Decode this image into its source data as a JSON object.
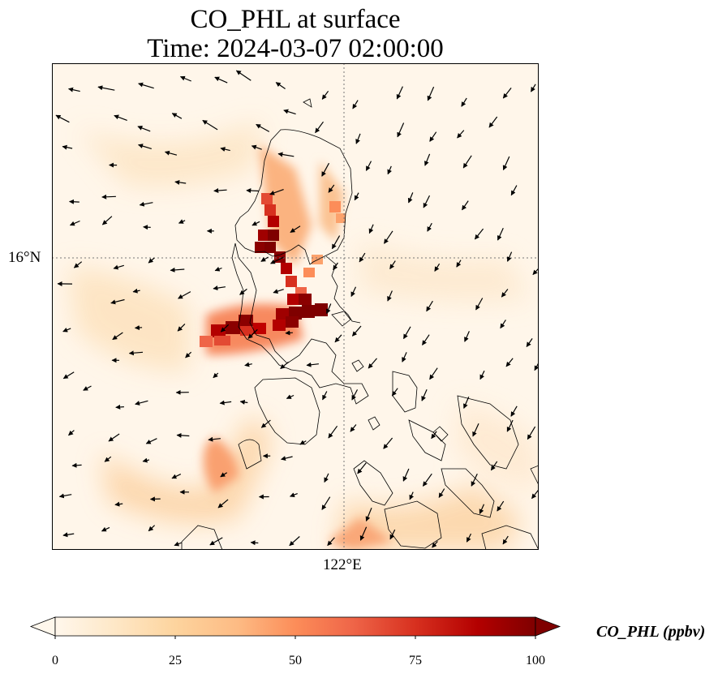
{
  "title_line1": "CO_PHL at surface",
  "title_line2": "Time: 2024-03-07 02:00:00",
  "map": {
    "lat_tick": "16°N",
    "lon_tick": "122°E",
    "gridline_style": "dotted",
    "features": [
      "Luzon coastline",
      "Visayas islands",
      "Mindoro"
    ],
    "wind_vectors": true,
    "hotspot_color": "#7f0000"
  },
  "colorbar": {
    "label": "CO_PHL (ppbv)",
    "ticks": [
      "0",
      "25",
      "50",
      "75",
      "100"
    ],
    "range": [
      0,
      100
    ],
    "colormap": [
      "#fff7ec",
      "#fee8c8",
      "#fdd49e",
      "#fdbb84",
      "#fc8d59",
      "#ef6548",
      "#d7301f",
      "#b30000",
      "#7f0000"
    ],
    "extend": "both"
  }
}
